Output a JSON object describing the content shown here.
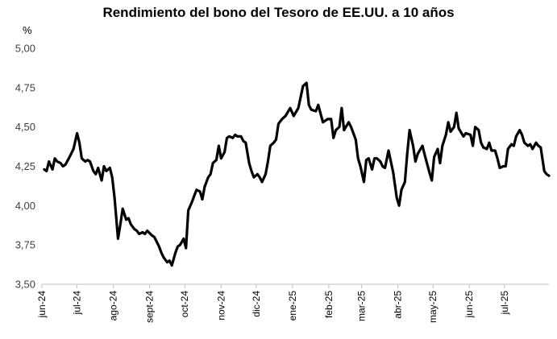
{
  "chart_data": {
    "type": "line",
    "title": "Rendimiento del bono del Tesoro de EE.UU. a 10 años",
    "ylabel": "%",
    "xlabel": "",
    "ylim": [
      3.5,
      5.0
    ],
    "yticks": [
      "5,00",
      "4,75",
      "4,50",
      "4,25",
      "4,00",
      "3,75",
      "3,50"
    ],
    "ytick_values": [
      5.0,
      4.75,
      4.5,
      4.25,
      4.0,
      3.75,
      3.5
    ],
    "xlim": [
      "2024-06-01",
      "2025-08-08"
    ],
    "grid": false,
    "legend": "none",
    "line_color": "#000000",
    "xticks": [
      {
        "label": "jun-24",
        "date": "2024-06-01"
      },
      {
        "label": "jul-24",
        "date": "2024-07-01"
      },
      {
        "label": "ago-24",
        "date": "2024-08-01"
      },
      {
        "label": "sept-24",
        "date": "2024-09-01"
      },
      {
        "label": "oct-24",
        "date": "2024-10-01"
      },
      {
        "label": "nov-24",
        "date": "2024-11-01"
      },
      {
        "label": "dic-24",
        "date": "2024-12-01"
      },
      {
        "label": "ene-25",
        "date": "2025-01-01"
      },
      {
        "label": "feb-25",
        "date": "2025-02-01"
      },
      {
        "label": "mar-25",
        "date": "2025-03-01"
      },
      {
        "label": "abr-25",
        "date": "2025-04-01"
      },
      {
        "label": "may-25",
        "date": "2025-05-01"
      },
      {
        "label": "jun-25",
        "date": "2025-06-01"
      },
      {
        "label": "jul-25",
        "date": "2025-07-01"
      }
    ],
    "series": [
      {
        "x": [
          "2024-06-03",
          "2024-06-05",
          "2024-06-07",
          "2024-06-10",
          "2024-06-12",
          "2024-06-14",
          "2024-06-17",
          "2024-06-19",
          "2024-06-21",
          "2024-06-24",
          "2024-06-26",
          "2024-06-28",
          "2024-07-01",
          "2024-07-03",
          "2024-07-05",
          "2024-07-08",
          "2024-07-10",
          "2024-07-12",
          "2024-07-15",
          "2024-07-17",
          "2024-07-19",
          "2024-07-22",
          "2024-07-24",
          "2024-07-26",
          "2024-07-29",
          "2024-07-31",
          "2024-08-02",
          "2024-08-05",
          "2024-08-07",
          "2024-08-09",
          "2024-08-12",
          "2024-08-14",
          "2024-08-16",
          "2024-08-19",
          "2024-08-21",
          "2024-08-23",
          "2024-08-26",
          "2024-08-28",
          "2024-08-30",
          "2024-09-03",
          "2024-09-05",
          "2024-09-09",
          "2024-09-11",
          "2024-09-13",
          "2024-09-16",
          "2024-09-18",
          "2024-09-20",
          "2024-09-23",
          "2024-09-25",
          "2024-09-27",
          "2024-09-30",
          "2024-10-02",
          "2024-10-04",
          "2024-10-07",
          "2024-10-09",
          "2024-10-11",
          "2024-10-14",
          "2024-10-16",
          "2024-10-18",
          "2024-10-21",
          "2024-10-23",
          "2024-10-25",
          "2024-10-28",
          "2024-10-30",
          "2024-11-01",
          "2024-11-04",
          "2024-11-06",
          "2024-11-08",
          "2024-11-11",
          "2024-11-13",
          "2024-11-15",
          "2024-11-18",
          "2024-11-20",
          "2024-11-22",
          "2024-11-25",
          "2024-11-27",
          "2024-11-29",
          "2024-12-02",
          "2024-12-04",
          "2024-12-06",
          "2024-12-09",
          "2024-12-11",
          "2024-12-13",
          "2024-12-16",
          "2024-12-18",
          "2024-12-20",
          "2024-12-23",
          "2024-12-26",
          "2024-12-30",
          "2025-01-02",
          "2025-01-06",
          "2025-01-08",
          "2025-01-10",
          "2025-01-13",
          "2025-01-15",
          "2025-01-17",
          "2025-01-21",
          "2025-01-23",
          "2025-01-27",
          "2025-01-29",
          "2025-01-31",
          "2025-02-03",
          "2025-02-05",
          "2025-02-07",
          "2025-02-10",
          "2025-02-12",
          "2025-02-14",
          "2025-02-18",
          "2025-02-20",
          "2025-02-24",
          "2025-02-26",
          "2025-02-28",
          "2025-03-03",
          "2025-03-05",
          "2025-03-07",
          "2025-03-10",
          "2025-03-12",
          "2025-03-14",
          "2025-03-17",
          "2025-03-19",
          "2025-03-21",
          "2025-03-24",
          "2025-03-26",
          "2025-03-28",
          "2025-03-31",
          "2025-04-02",
          "2025-04-04",
          "2025-04-07",
          "2025-04-09",
          "2025-04-11",
          "2025-04-14",
          "2025-04-16",
          "2025-04-18",
          "2025-04-22",
          "2025-04-24",
          "2025-04-28",
          "2025-04-30",
          "2025-05-02",
          "2025-05-05",
          "2025-05-07",
          "2025-05-09",
          "2025-05-12",
          "2025-05-14",
          "2025-05-16",
          "2025-05-19",
          "2025-05-21",
          "2025-05-23",
          "2025-05-27",
          "2025-05-29",
          "2025-06-02",
          "2025-06-04",
          "2025-06-06",
          "2025-06-09",
          "2025-06-11",
          "2025-06-13",
          "2025-06-16",
          "2025-06-18",
          "2025-06-20",
          "2025-06-23",
          "2025-06-25",
          "2025-06-27",
          "2025-06-30",
          "2025-07-02",
          "2025-07-04",
          "2025-07-07",
          "2025-07-09",
          "2025-07-11",
          "2025-07-14",
          "2025-07-16",
          "2025-07-18",
          "2025-07-21",
          "2025-07-23",
          "2025-07-25",
          "2025-07-28",
          "2025-07-30",
          "2025-08-01",
          "2025-08-04",
          "2025-08-06",
          "2025-08-08"
        ],
        "y": [
          4.23,
          4.22,
          4.28,
          4.23,
          4.3,
          4.28,
          4.27,
          4.25,
          4.26,
          4.3,
          4.33,
          4.36,
          4.46,
          4.4,
          4.3,
          4.28,
          4.29,
          4.28,
          4.22,
          4.2,
          4.24,
          4.16,
          4.25,
          4.22,
          4.24,
          4.18,
          4.05,
          3.79,
          3.88,
          3.98,
          3.91,
          3.92,
          3.88,
          3.85,
          3.84,
          3.82,
          3.83,
          3.82,
          3.84,
          3.81,
          3.8,
          3.74,
          3.7,
          3.67,
          3.64,
          3.65,
          3.62,
          3.7,
          3.74,
          3.75,
          3.79,
          3.73,
          3.97,
          4.02,
          4.06,
          4.1,
          4.09,
          4.04,
          4.12,
          4.18,
          4.2,
          4.27,
          4.29,
          4.38,
          4.3,
          4.34,
          4.43,
          4.44,
          4.43,
          4.45,
          4.44,
          4.44,
          4.41,
          4.4,
          4.27,
          4.22,
          4.18,
          4.2,
          4.18,
          4.15,
          4.2,
          4.28,
          4.38,
          4.4,
          4.42,
          4.52,
          4.55,
          4.57,
          4.62,
          4.57,
          4.62,
          4.69,
          4.76,
          4.78,
          4.64,
          4.61,
          4.6,
          4.64,
          4.53,
          4.54,
          4.55,
          4.55,
          4.43,
          4.48,
          4.5,
          4.62,
          4.48,
          4.53,
          4.5,
          4.42,
          4.3,
          4.25,
          4.15,
          4.29,
          4.3,
          4.23,
          4.3,
          4.3,
          4.28,
          4.25,
          4.24,
          4.35,
          4.28,
          4.21,
          4.05,
          4.0,
          4.1,
          4.15,
          4.33,
          4.48,
          4.38,
          4.28,
          4.33,
          4.38,
          4.32,
          4.21,
          4.16,
          4.31,
          4.36,
          4.27,
          4.38,
          4.45,
          4.53,
          4.47,
          4.5,
          4.59,
          4.49,
          4.44,
          4.46,
          4.45,
          4.38,
          4.5,
          4.48,
          4.4,
          4.37,
          4.36,
          4.4,
          4.35,
          4.35,
          4.3,
          4.24,
          4.25,
          4.25,
          4.36,
          4.39,
          4.38,
          4.44,
          4.48,
          4.45,
          4.4,
          4.38,
          4.39,
          4.36,
          4.4,
          4.38,
          4.37,
          4.22,
          4.2,
          4.19
        ]
      }
    ]
  }
}
